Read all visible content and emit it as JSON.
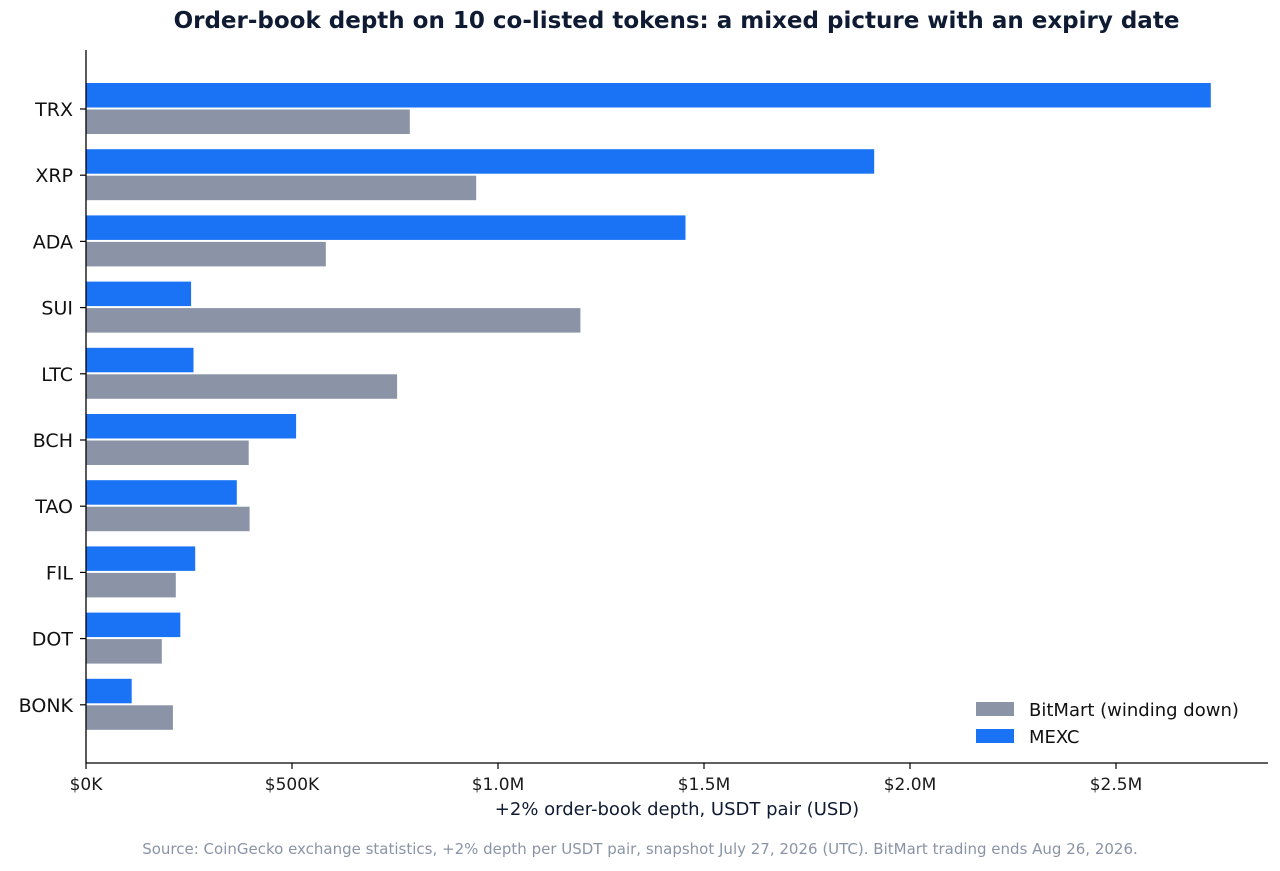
{
  "chart_data": {
    "type": "bar",
    "orientation": "horizontal",
    "title": "Order-book depth on 10 co-listed tokens: a mixed picture with an expiry date",
    "xlabel": "+2% order-book depth, USDT pair (USD)",
    "ylabel": "",
    "categories": [
      "TRX",
      "XRP",
      "ADA",
      "SUI",
      "LTC",
      "BCH",
      "TAO",
      "FIL",
      "DOT",
      "BONK"
    ],
    "series": [
      {
        "name": "MEXC",
        "color": "#1a73f5",
        "values": [
          2730000,
          1913000,
          1455000,
          255000,
          261000,
          510000,
          366000,
          265000,
          229000,
          111000
        ]
      },
      {
        "name": "BitMart (winding down)",
        "color": "#8a94a6",
        "values": [
          786000,
          947000,
          582000,
          1200000,
          755000,
          395000,
          397000,
          218000,
          184000,
          211000
        ]
      }
    ],
    "xlim": [
      0,
      2870000
    ],
    "xticks": [
      0,
      500000,
      1000000,
      1500000,
      2000000,
      2500000
    ],
    "xtick_labels": [
      "$0K",
      "$500K",
      "$1.0M",
      "$1.5M",
      "$2.0M",
      "$2.5M"
    ],
    "legend": {
      "position": "bottom-right",
      "entries": [
        "BitMart (winding down)",
        "MEXC"
      ]
    },
    "grid": false
  },
  "source_note": "Source: CoinGecko exchange statistics, +2% depth per USDT pair, snapshot July 27, 2026 (UTC). BitMart trading ends Aug 26, 2026."
}
